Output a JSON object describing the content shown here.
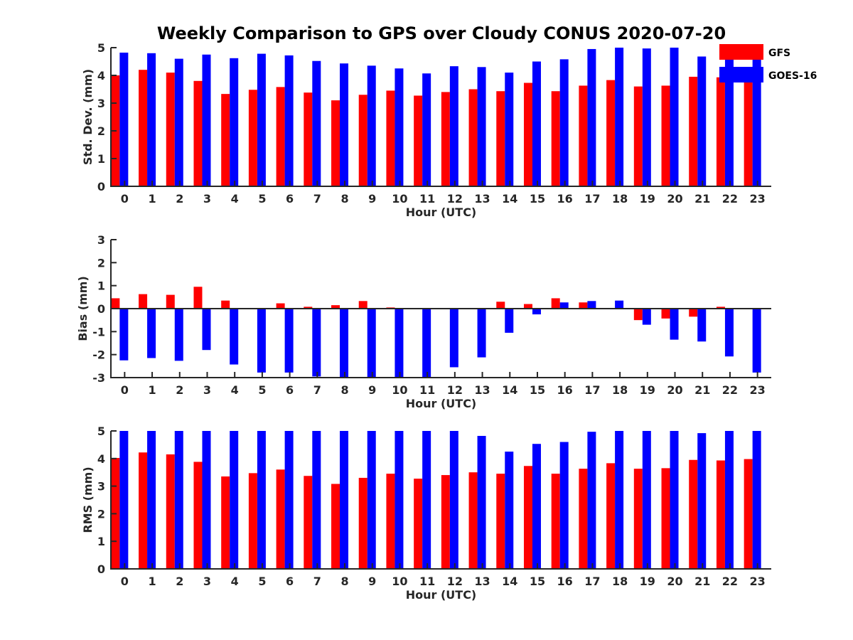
{
  "title": "Weekly Comparison to GPS over Cloudy CONUS 2020-07-20",
  "colors": {
    "GFS": "#ff0000",
    "GOES-16": "#0000ff"
  },
  "chart_data": [
    {
      "type": "bar",
      "ylabel": "Std. Dev. (mm)",
      "xlabel": "Hour (UTC)",
      "ylim": [
        0,
        5
      ],
      "yticks": [
        "0",
        "1",
        "2",
        "3",
        "4",
        "5"
      ],
      "categories": [
        "0",
        "1",
        "2",
        "3",
        "4",
        "5",
        "6",
        "7",
        "8",
        "9",
        "10",
        "11",
        "12",
        "13",
        "14",
        "15",
        "16",
        "17",
        "18",
        "19",
        "20",
        "21",
        "22",
        "23"
      ],
      "legend": {
        "placement": "top-right",
        "entries": [
          "GFS",
          "GOES-16"
        ]
      },
      "series": [
        {
          "name": "GFS",
          "values": [
            4.0,
            4.2,
            4.1,
            3.8,
            3.33,
            3.48,
            3.58,
            3.38,
            3.1,
            3.3,
            3.45,
            3.27,
            3.4,
            3.5,
            3.43,
            3.73,
            3.43,
            3.63,
            3.83,
            3.6,
            3.63,
            3.95,
            3.93,
            3.98
          ]
        },
        {
          "name": "GOES-16",
          "values": [
            4.82,
            4.8,
            4.6,
            4.75,
            4.62,
            4.78,
            4.72,
            4.52,
            4.43,
            4.35,
            4.25,
            4.07,
            4.33,
            4.3,
            4.1,
            4.5,
            4.58,
            4.95,
            5.0,
            4.97,
            5.0,
            4.68,
            4.65,
            4.6
          ]
        }
      ]
    },
    {
      "type": "bar",
      "ylabel": "Bias (mm)",
      "xlabel": "Hour (UTC)",
      "ylim": [
        -3,
        3
      ],
      "yticks": [
        "-3",
        "-2",
        "-1",
        "0",
        "1",
        "2",
        "3"
      ],
      "categories": [
        "0",
        "1",
        "2",
        "3",
        "4",
        "5",
        "6",
        "7",
        "8",
        "9",
        "10",
        "11",
        "12",
        "13",
        "14",
        "15",
        "16",
        "17",
        "18",
        "19",
        "20",
        "21",
        "22",
        "23"
      ],
      "series": [
        {
          "name": "GFS",
          "values": [
            0.45,
            0.63,
            0.6,
            0.95,
            0.35,
            0.0,
            0.23,
            0.08,
            0.15,
            0.33,
            0.05,
            0.02,
            0.0,
            0.0,
            0.3,
            0.2,
            0.45,
            0.27,
            0.03,
            -0.5,
            -0.43,
            -0.35,
            0.08,
            0.02
          ]
        },
        {
          "name": "GOES-16",
          "values": [
            -2.25,
            -2.15,
            -2.27,
            -1.8,
            -2.43,
            -2.78,
            -2.78,
            -2.95,
            -3.0,
            -2.97,
            -3.0,
            -2.97,
            -2.55,
            -2.12,
            -1.05,
            -0.25,
            0.27,
            0.33,
            0.35,
            -0.7,
            -1.35,
            -1.43,
            -2.08,
            -2.78
          ]
        }
      ]
    },
    {
      "type": "bar",
      "ylabel": "RMS (mm)",
      "xlabel": "Hour (UTC)",
      "ylim": [
        0,
        5
      ],
      "yticks": [
        "0",
        "1",
        "2",
        "3",
        "4",
        "5"
      ],
      "categories": [
        "0",
        "1",
        "2",
        "3",
        "4",
        "5",
        "6",
        "7",
        "8",
        "9",
        "10",
        "11",
        "12",
        "13",
        "14",
        "15",
        "16",
        "17",
        "18",
        "19",
        "20",
        "21",
        "22",
        "23"
      ],
      "series": [
        {
          "name": "GFS",
          "values": [
            4.02,
            4.22,
            4.15,
            3.88,
            3.35,
            3.47,
            3.6,
            3.37,
            3.08,
            3.3,
            3.45,
            3.27,
            3.4,
            3.5,
            3.45,
            3.73,
            3.45,
            3.63,
            3.83,
            3.63,
            3.65,
            3.95,
            3.93,
            3.98
          ]
        },
        {
          "name": "GOES-16",
          "values": [
            5.0,
            5.0,
            5.0,
            5.0,
            5.0,
            5.0,
            5.0,
            5.0,
            5.0,
            5.0,
            5.0,
            5.0,
            5.0,
            4.82,
            4.25,
            4.53,
            4.6,
            4.97,
            5.0,
            5.0,
            5.0,
            4.92,
            5.0,
            5.0
          ]
        }
      ]
    }
  ]
}
